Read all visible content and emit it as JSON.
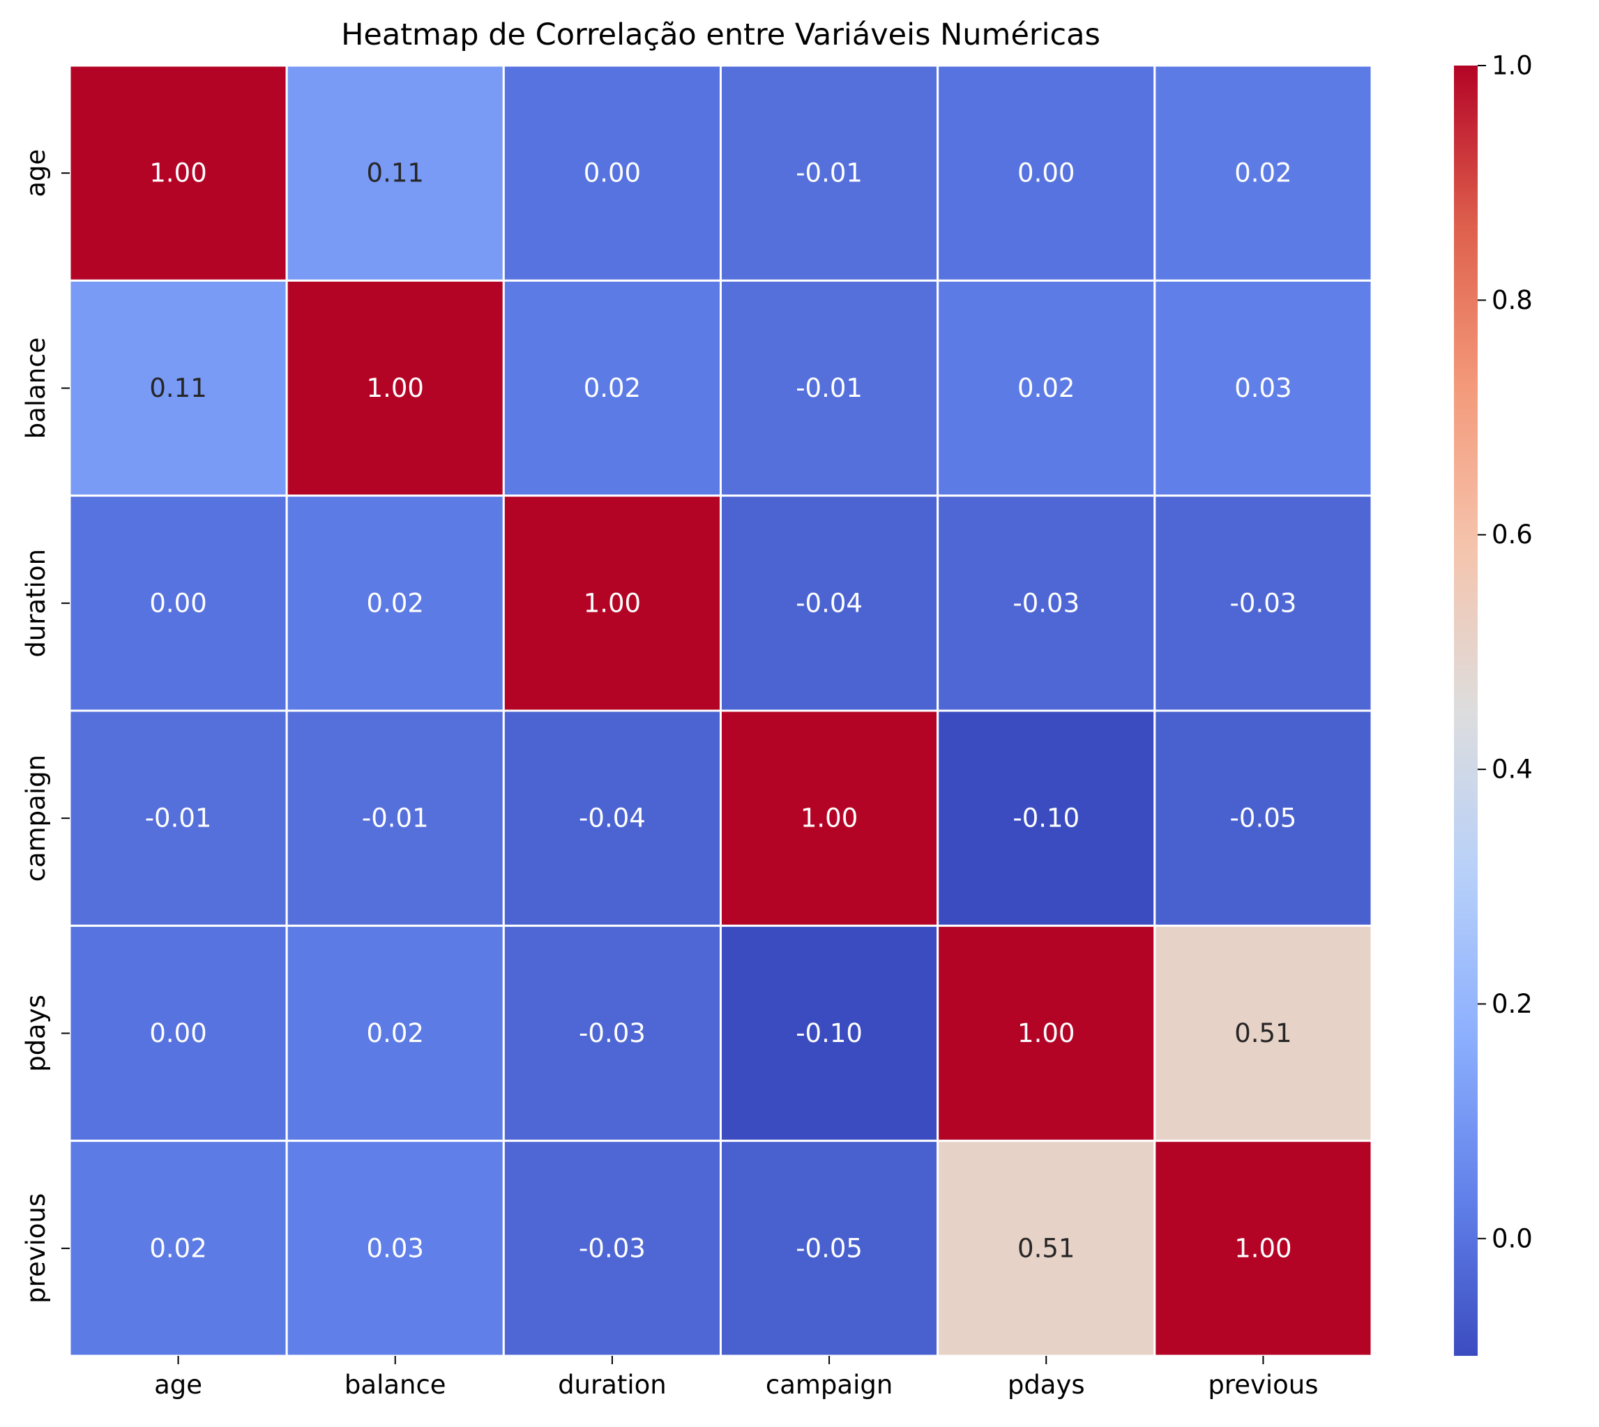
{
  "chart_data": {
    "type": "heatmap",
    "title": "Heatmap de Correlação entre Variáveis Numéricas",
    "xlabel": "",
    "ylabel": "",
    "x_labels": [
      "age",
      "balance",
      "duration",
      "campaign",
      "pdays",
      "previous"
    ],
    "y_labels": [
      "age",
      "balance",
      "duration",
      "campaign",
      "pdays",
      "previous"
    ],
    "values": [
      [
        1.0,
        0.11,
        0.0,
        -0.01,
        0.0,
        0.02
      ],
      [
        0.11,
        1.0,
        0.02,
        -0.01,
        0.02,
        0.03
      ],
      [
        0.0,
        0.02,
        1.0,
        -0.04,
        -0.03,
        -0.03
      ],
      [
        -0.01,
        -0.01,
        -0.04,
        1.0,
        -0.1,
        -0.05
      ],
      [
        0.0,
        0.02,
        -0.03,
        -0.1,
        1.0,
        0.51
      ],
      [
        0.02,
        0.03,
        -0.03,
        -0.05,
        0.51,
        1.0
      ]
    ],
    "value_format": "0.00",
    "colormap": "coolwarm",
    "vmin": -0.1,
    "vmax": 1.0,
    "colorbar": {
      "ticks": [
        0.0,
        0.2,
        0.4,
        0.6,
        0.8,
        1.0
      ],
      "tick_labels": [
        "0.0",
        "0.2",
        "0.4",
        "0.6",
        "0.8",
        "1.0"
      ],
      "placement": "right"
    },
    "grid": false,
    "cell_separator_color": "#ffffff",
    "annotation_colors": {
      "light": "#ffffff",
      "dark": "#262626"
    }
  }
}
